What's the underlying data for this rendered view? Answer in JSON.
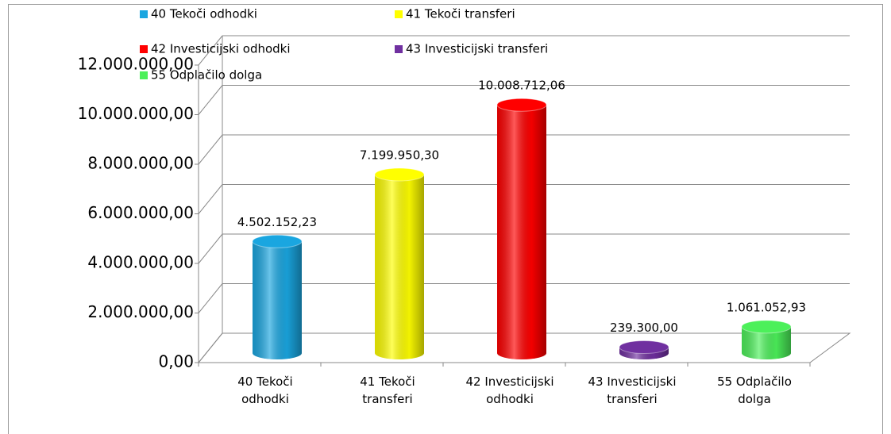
{
  "chart_data": {
    "type": "bar3d",
    "categories": [
      "40 Tekoči odhodki",
      "41 Tekoči transferi",
      "42 Investicijski odhodki",
      "43 Investicijski transferi",
      "55 Odplačilo dolga"
    ],
    "values": [
      4502152.23,
      7199950.3,
      10008712.06,
      239300.0,
      1061052.93
    ],
    "value_labels": [
      "4.502.152,23",
      "7.199.950,30",
      "10.008.712,06",
      "239.300,00",
      "1.061.052,93"
    ],
    "colors": [
      "#1aa6e0",
      "#ffff00",
      "#ff0000",
      "#7030a0",
      "#4cf05a"
    ],
    "ylim": [
      0,
      12000000
    ],
    "yticks": [
      {
        "value": 0,
        "label": "0,00"
      },
      {
        "value": 2000000,
        "label": "2.000.000,00"
      },
      {
        "value": 4000000,
        "label": "4.000.000,00"
      },
      {
        "value": 6000000,
        "label": "6.000.000,00"
      },
      {
        "value": 8000000,
        "label": "8.000.000,00"
      },
      {
        "value": 10000000,
        "label": "10.000.000,00"
      },
      {
        "value": 12000000,
        "label": "12.000.000,00"
      }
    ],
    "grid": true,
    "legend": "top"
  }
}
